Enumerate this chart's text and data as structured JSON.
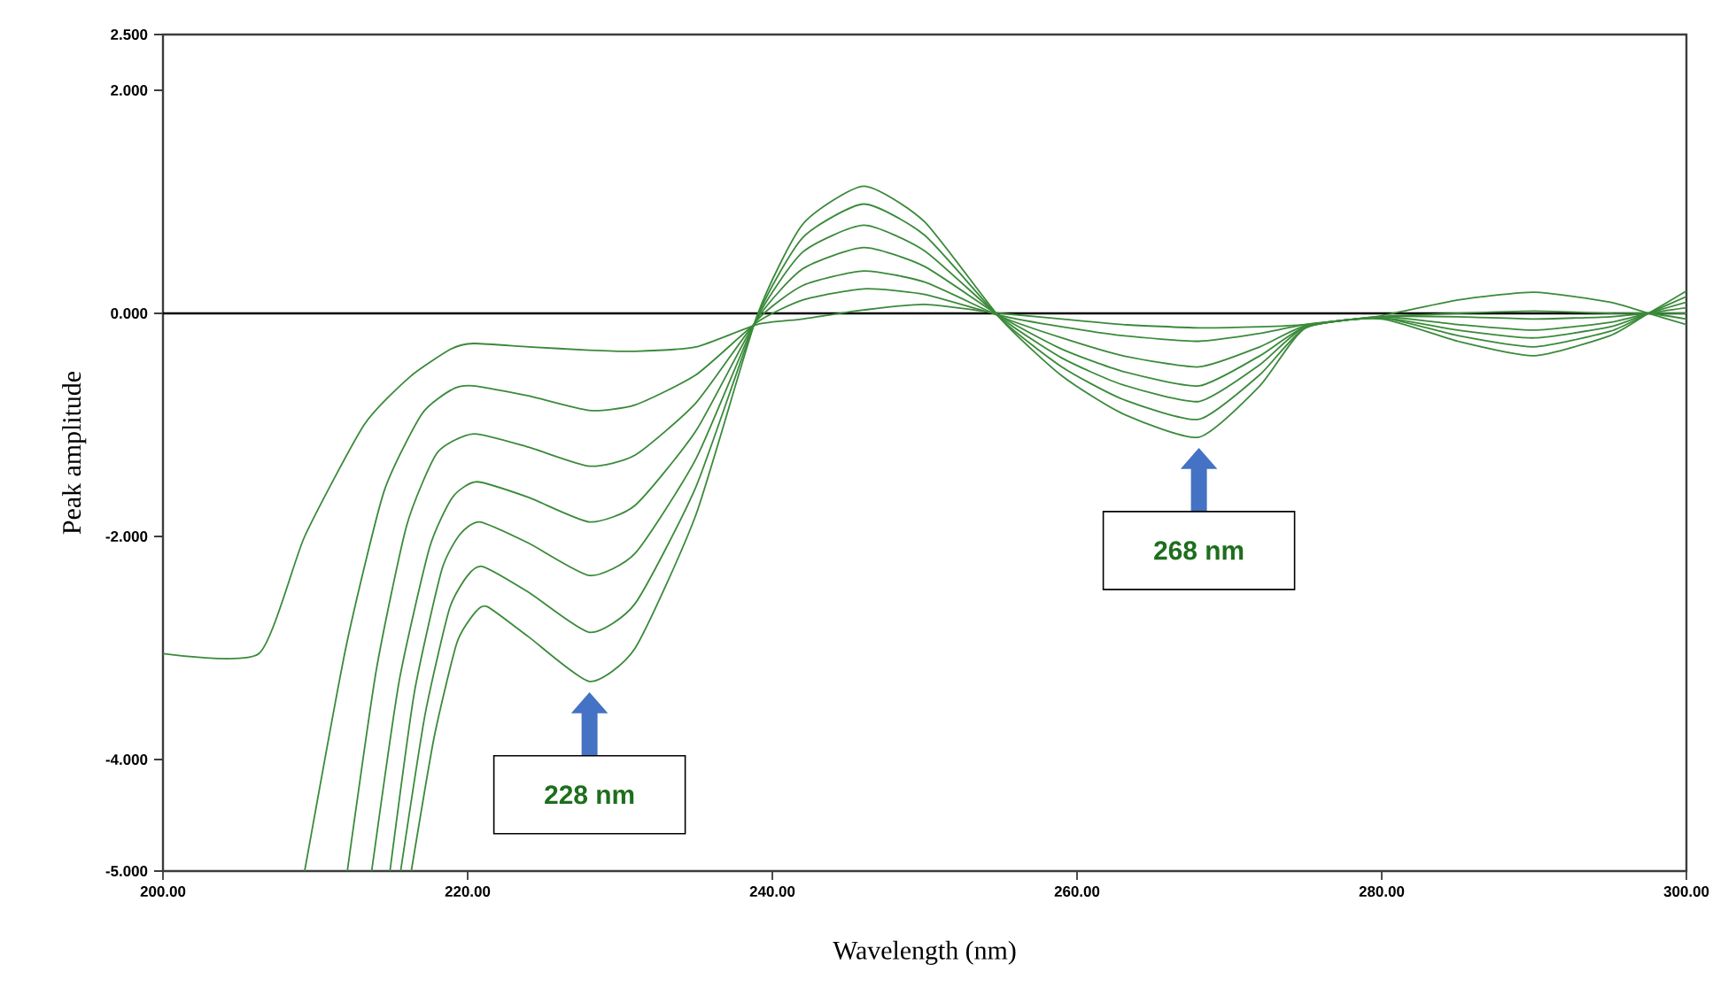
{
  "chart_data": {
    "type": "line",
    "xlabel": "Wavelength (nm)",
    "ylabel": "Peak amplitude",
    "xlim": [
      200,
      300
    ],
    "ylim": [
      -5,
      2.5
    ],
    "xticks": [
      {
        "value": 200,
        "label": "200.00"
      },
      {
        "value": 220,
        "label": "220.00"
      },
      {
        "value": 240,
        "label": "240.00"
      },
      {
        "value": 260,
        "label": "260.00"
      },
      {
        "value": 280,
        "label": "280.00"
      },
      {
        "value": 300,
        "label": "300.00"
      }
    ],
    "yticks": [
      {
        "value": -5,
        "label": "-5.000"
      },
      {
        "value": -4,
        "label": "-4.000"
      },
      {
        "value": -2,
        "label": "-2.000"
      },
      {
        "value": 0,
        "label": "0.000"
      },
      {
        "value": 2,
        "label": "2.000"
      },
      {
        "value": 2.5,
        "label": "2.500"
      }
    ],
    "ref_lines": [
      {
        "axis": "y",
        "value": 0,
        "color": "#000000"
      }
    ],
    "annotations": [
      "228 nm",
      "268 nm"
    ],
    "series": [
      {
        "color": "#3a8a3a",
        "x": [
          200,
          206.3,
          209.3,
          213.2,
          216.2,
          218.9,
          220.4,
          224,
          228,
          231,
          235,
          239,
          242,
          246,
          250,
          255,
          259,
          263,
          268,
          272,
          275,
          280,
          285,
          290,
          295,
          297.5,
          300
        ],
        "values": [
          -3.05,
          -3.05,
          -2.0,
          -1.0,
          -0.57,
          -0.32,
          -0.27,
          -0.3,
          -0.33,
          -0.34,
          -0.3,
          -0.1,
          -0.05,
          0.03,
          0.08,
          0.0,
          -0.05,
          -0.1,
          -0.13,
          -0.12,
          -0.1,
          -0.02,
          0.12,
          0.19,
          0.1,
          0,
          -0.1
        ]
      },
      {
        "color": "#3a8a3a",
        "x": [
          209.3,
          212,
          214.5,
          217,
          219,
          220.4,
          224,
          228,
          231,
          235,
          239,
          242,
          246,
          250,
          255,
          259,
          263,
          268,
          272,
          275,
          280,
          285,
          290,
          295,
          297.5,
          300
        ],
        "values": [
          -5,
          -3.0,
          -1.6,
          -0.9,
          -0.68,
          -0.65,
          -0.74,
          -0.87,
          -0.82,
          -0.55,
          -0.08,
          0.12,
          0.22,
          0.17,
          -0.02,
          -0.12,
          -0.2,
          -0.25,
          -0.18,
          -0.1,
          -0.03,
          0.0,
          0.02,
          0.0,
          0,
          -0.05
        ]
      },
      {
        "color": "#3a8a3a",
        "x": [
          212.1,
          214,
          216,
          218,
          220.4,
          224,
          228,
          231,
          235,
          239,
          242,
          246,
          250,
          255,
          259,
          263,
          268,
          272,
          275,
          280,
          285,
          290,
          295,
          297.5,
          300
        ],
        "values": [
          -5,
          -3.2,
          -1.9,
          -1.25,
          -1.08,
          -1.2,
          -1.37,
          -1.27,
          -0.8,
          -0.06,
          0.25,
          0.38,
          0.28,
          -0.03,
          -0.22,
          -0.38,
          -0.48,
          -0.3,
          -0.11,
          -0.03,
          -0.03,
          -0.05,
          -0.03,
          0,
          0.0
        ]
      },
      {
        "color": "#3a8a3a",
        "x": [
          213.7,
          215.5,
          217.5,
          219,
          220.6,
          224,
          228,
          231,
          235,
          239,
          242,
          246,
          250,
          255,
          259,
          263,
          268,
          272,
          275,
          280,
          285,
          290,
          295,
          297.5,
          300
        ],
        "values": [
          -5,
          -3.3,
          -2.1,
          -1.65,
          -1.51,
          -1.65,
          -1.87,
          -1.72,
          -1.05,
          -0.05,
          0.4,
          0.59,
          0.42,
          -0.03,
          -0.32,
          -0.52,
          -0.65,
          -0.38,
          -0.12,
          -0.03,
          -0.1,
          -0.15,
          -0.08,
          0,
          0.05
        ]
      },
      {
        "color": "#3a8a3a",
        "x": [
          214.9,
          216.5,
          218.3,
          219.5,
          220.8,
          224,
          228,
          231,
          235,
          239,
          242,
          246,
          250,
          255,
          259,
          263,
          268,
          272,
          275,
          280,
          285,
          290,
          295,
          297.5,
          300
        ],
        "values": [
          -5,
          -3.4,
          -2.3,
          -1.98,
          -1.87,
          -2.06,
          -2.35,
          -2.15,
          -1.3,
          -0.04,
          0.55,
          0.79,
          0.56,
          -0.04,
          -0.4,
          -0.64,
          -0.79,
          -0.46,
          -0.12,
          -0.04,
          -0.15,
          -0.22,
          -0.12,
          0,
          0.1
        ]
      },
      {
        "color": "#3a8a3a",
        "x": [
          215.6,
          217.2,
          218.8,
          220,
          221,
          224,
          228,
          231,
          235,
          239,
          242,
          246,
          250,
          255,
          259,
          263,
          268,
          272,
          275,
          280,
          285,
          290,
          295,
          297.5,
          300
        ],
        "values": [
          -5,
          -3.6,
          -2.65,
          -2.35,
          -2.27,
          -2.5,
          -2.86,
          -2.6,
          -1.55,
          -0.03,
          0.68,
          0.98,
          0.7,
          -0.05,
          -0.48,
          -0.77,
          -0.95,
          -0.55,
          -0.13,
          -0.04,
          -0.2,
          -0.3,
          -0.16,
          0,
          0.15
        ]
      },
      {
        "color": "#3a8a3a",
        "x": [
          216.3,
          217.8,
          219.3,
          220.5,
          221.3,
          224,
          228,
          231,
          235,
          239,
          242,
          246,
          250,
          255,
          259,
          263,
          268,
          272,
          275,
          280,
          285,
          290,
          295,
          297.5,
          300
        ],
        "values": [
          -5,
          -3.8,
          -2.95,
          -2.68,
          -2.63,
          -2.9,
          -3.3,
          -3.0,
          -1.8,
          -0.02,
          0.8,
          1.14,
          0.82,
          -0.05,
          -0.56,
          -0.9,
          -1.11,
          -0.65,
          -0.13,
          -0.05,
          -0.25,
          -0.38,
          -0.2,
          0,
          0.2
        ]
      }
    ]
  }
}
